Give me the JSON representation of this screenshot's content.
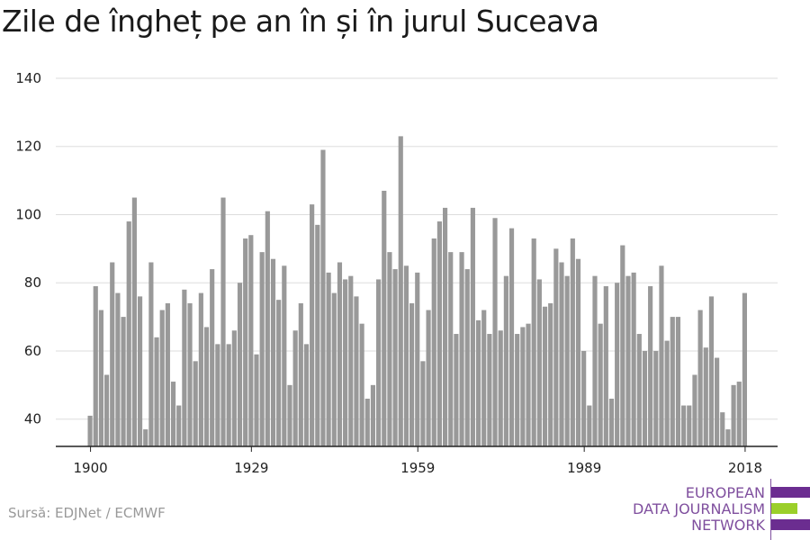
{
  "title": "Zile de îngheț pe an în și în jurul Suceava",
  "source": "Sursă: EDJNet / ECMWF",
  "logo": {
    "line1": "EUROPEAN",
    "line2": "DATA JOURNALISM",
    "line3": "NETWORK",
    "colors": {
      "text": "#7f4f9e",
      "purple": "#6b2d90",
      "green": "#9bcf2a"
    }
  },
  "colors": {
    "bar": "#999999",
    "grid": "#dddddd",
    "axis": "#222222",
    "text": "#222222"
  },
  "chart_data": {
    "type": "bar",
    "title": "Zile de îngheț pe an în și în jurul Suceava",
    "xlabel": "",
    "ylabel": "",
    "ylim": [
      32,
      140
    ],
    "yticks": [
      40,
      60,
      80,
      100,
      120,
      140
    ],
    "xticks": [
      1900,
      1929,
      1959,
      1989,
      2018
    ],
    "grid": true,
    "x": [
      1900,
      1901,
      1902,
      1903,
      1904,
      1905,
      1906,
      1907,
      1908,
      1909,
      1910,
      1911,
      1912,
      1913,
      1914,
      1915,
      1916,
      1917,
      1918,
      1919,
      1920,
      1921,
      1922,
      1923,
      1924,
      1925,
      1926,
      1927,
      1928,
      1929,
      1930,
      1931,
      1932,
      1933,
      1934,
      1935,
      1936,
      1937,
      1938,
      1939,
      1940,
      1941,
      1942,
      1943,
      1944,
      1945,
      1946,
      1947,
      1948,
      1949,
      1950,
      1951,
      1952,
      1953,
      1954,
      1955,
      1956,
      1957,
      1958,
      1959,
      1960,
      1961,
      1962,
      1963,
      1964,
      1965,
      1966,
      1967,
      1968,
      1969,
      1970,
      1971,
      1972,
      1973,
      1974,
      1975,
      1976,
      1977,
      1978,
      1979,
      1980,
      1981,
      1982,
      1983,
      1984,
      1985,
      1986,
      1987,
      1988,
      1989,
      1990,
      1991,
      1992,
      1993,
      1994,
      1995,
      1996,
      1997,
      1998,
      1999,
      2000,
      2001,
      2002,
      2003,
      2004,
      2005,
      2006,
      2007,
      2008,
      2009,
      2010,
      2011,
      2012,
      2013,
      2014,
      2015,
      2016,
      2017,
      2018
    ],
    "values": [
      41,
      79,
      72,
      53,
      86,
      77,
      70,
      98,
      105,
      76,
      37,
      86,
      64,
      72,
      74,
      51,
      44,
      78,
      74,
      57,
      77,
      67,
      84,
      62,
      105,
      62,
      66,
      80,
      93,
      94,
      59,
      89,
      101,
      87,
      75,
      85,
      50,
      66,
      74,
      62,
      103,
      97,
      119,
      83,
      77,
      86,
      81,
      82,
      76,
      68,
      46,
      50,
      81,
      107,
      89,
      84,
      123,
      85,
      74,
      83,
      57,
      72,
      93,
      98,
      102,
      89,
      65,
      89,
      84,
      102,
      69,
      72,
      65,
      99,
      66,
      82,
      96,
      65,
      67,
      68,
      93,
      81,
      73,
      74,
      90,
      86,
      82,
      93,
      87,
      60,
      44,
      82,
      68,
      79,
      46,
      80,
      91,
      82,
      83,
      65,
      60,
      79,
      60,
      85,
      63,
      70,
      70,
      44,
      44,
      53,
      72,
      61,
      76,
      58,
      42,
      37,
      50,
      51,
      77
    ]
  }
}
